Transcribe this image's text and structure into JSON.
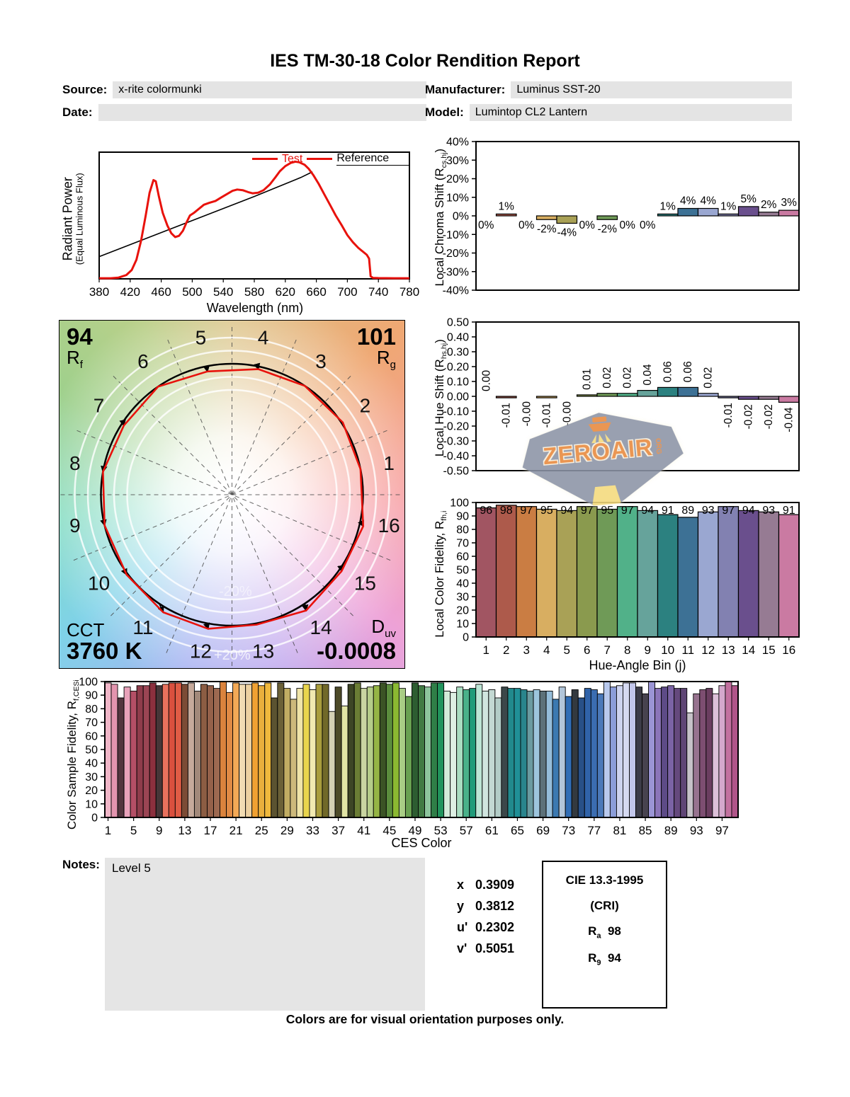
{
  "title": "IES TM-30-18 Color Rendition Report",
  "header": {
    "source_label": "Source:",
    "source_value": "x-rite colormunki",
    "manufacturer_label": "Manufacturer:",
    "manufacturer_value": "Luminus SST-20",
    "date_label": "Date:",
    "date_value": "",
    "model_label": "Model:",
    "model_value": "Lumintop CL2 Lantern"
  },
  "notes": {
    "label": "Notes:",
    "text": "Level 5"
  },
  "chromaticity": {
    "rows": [
      {
        "label": "x",
        "value": "0.3909"
      },
      {
        "label": "y",
        "value": "0.3812"
      },
      {
        "label": "u'",
        "value": "0.2302"
      },
      {
        "label": "v'",
        "value": "0.5051"
      }
    ]
  },
  "cie_box": {
    "title": "CIE 13.3-1995",
    "subtitle": "(CRI)",
    "ra_sym": "R",
    "ra_sub": "a",
    "ra_value": "98",
    "r9_sym": "R",
    "r9_sub": "9",
    "r9_value": "94"
  },
  "watermark": {
    "text": "ZEROAIR",
    "suffix": "ORG",
    "badge_color": "#8b93a6",
    "text_color": "#e8883c",
    "beam_color": "#f4da7c"
  },
  "footer": "Colors are for visual orientation purposes only.",
  "hue_bin_colors": [
    "#a15562",
    "#ad5a4b",
    "#ca7d43",
    "#d8ae61",
    "#a9a156",
    "#8a9a4e",
    "#6f9a57",
    "#51b189",
    "#66a39b",
    "#2c8180",
    "#3d7195",
    "#9aa7d1",
    "#8281b1",
    "#6a4f8d",
    "#967b93",
    "#ca7aa2"
  ],
  "chart_data": {
    "spd": {
      "type": "line",
      "xlabel": "Wavelength (nm)",
      "ylabel_line1": "Radiant Power",
      "ylabel_line2": "(Equal Luminous Flux)",
      "xlim": [
        380,
        780
      ],
      "xticks": [
        380,
        420,
        460,
        500,
        540,
        580,
        620,
        660,
        700,
        740,
        780
      ],
      "legend": {
        "test": "Test",
        "reference": "Reference"
      },
      "test_color": "#e8120c",
      "reference_color": "#000000",
      "test": {
        "x": [
          380,
          395,
          405,
          415,
          422,
          428,
          434,
          440,
          445,
          450,
          453,
          457,
          462,
          468,
          473,
          478,
          483,
          488,
          493,
          497,
          502,
          508,
          515,
          522,
          530,
          538,
          545,
          552,
          558,
          565,
          572,
          578,
          585,
          592,
          600,
          607,
          613,
          620,
          627,
          633,
          638,
          645,
          650,
          656,
          663,
          670,
          678,
          685,
          693,
          700,
          707,
          714,
          720,
          725,
          728,
          730,
          733,
          740,
          760,
          780
        ],
        "y": [
          0.005,
          0.005,
          0.01,
          0.03,
          0.07,
          0.15,
          0.3,
          0.5,
          0.68,
          0.78,
          0.77,
          0.65,
          0.52,
          0.42,
          0.36,
          0.33,
          0.34,
          0.38,
          0.45,
          0.5,
          0.52,
          0.55,
          0.585,
          0.6,
          0.615,
          0.645,
          0.67,
          0.695,
          0.705,
          0.7,
          0.685,
          0.675,
          0.68,
          0.7,
          0.745,
          0.8,
          0.85,
          0.89,
          0.915,
          0.925,
          0.92,
          0.9,
          0.87,
          0.82,
          0.75,
          0.67,
          0.58,
          0.5,
          0.42,
          0.345,
          0.29,
          0.245,
          0.215,
          0.19,
          0.16,
          0.02,
          0.008,
          0.006,
          0.005,
          0.005
        ]
      },
      "reference": {
        "x": [
          380,
          420,
          460,
          500,
          540,
          580,
          620,
          640,
          655
        ],
        "y": [
          0.175,
          0.27,
          0.365,
          0.46,
          0.555,
          0.65,
          0.75,
          0.8,
          0.845
        ]
      }
    },
    "chroma_shift": {
      "type": "bar",
      "ylabel_pre": "Local Chroma Shift (R",
      "ylabel_sub": "cs,hj",
      "ylabel_post": ")",
      "ylim": [
        -0.4,
        0.4
      ],
      "yticks": [
        "40%",
        "30%",
        "20%",
        "10%",
        "0%",
        "-10%",
        "-20%",
        "-30%",
        "-40%"
      ],
      "values": [
        0.0,
        0.01,
        0.0,
        -0.02,
        -0.04,
        0.0,
        -0.02,
        0.0,
        0.0,
        0.01,
        0.04,
        0.04,
        0.01,
        0.05,
        0.02,
        0.03
      ],
      "labels": [
        "0%",
        "1%",
        "0%",
        "-2%",
        "-4%",
        "0%",
        "-2%",
        "0%",
        "0%",
        "1%",
        "4%",
        "4%",
        "1%",
        "5%",
        "2%",
        "3%"
      ]
    },
    "hue_shift": {
      "type": "bar",
      "ylabel_pre": "Local Hue Shift (R",
      "ylabel_sub": "hs,hj",
      "ylabel_post": ")",
      "ylim": [
        -0.5,
        0.5
      ],
      "yticks": [
        "0.50",
        "0.40",
        "0.30",
        "0.20",
        "0.10",
        "0.00",
        "-0.10",
        "-0.20",
        "-0.30",
        "-0.40",
        "-0.50"
      ],
      "values": [
        0.0,
        -0.01,
        0.0,
        -0.01,
        0.0,
        0.01,
        0.02,
        0.02,
        0.04,
        0.06,
        0.06,
        0.02,
        -0.01,
        -0.02,
        -0.02,
        -0.04
      ],
      "labels": [
        "0.00",
        "-0.01",
        "-0.00",
        "-0.01",
        "-0.00",
        "0.01",
        "0.02",
        "0.02",
        "0.04",
        "0.06",
        "0.06",
        "0.02",
        "-0.01",
        "-0.02",
        "-0.02",
        "-0.04"
      ]
    },
    "local_fidelity": {
      "type": "bar",
      "ylabel_pre": "Local Color Fidelity, R",
      "ylabel_sub": "fh,i",
      "ylabel_post": "",
      "xlabel": "Hue-Angle Bin (j)",
      "ylim": [
        0,
        100
      ],
      "yticks": [
        "100",
        "90",
        "80",
        "70",
        "60",
        "50",
        "40",
        "30",
        "20",
        "10",
        "0"
      ],
      "categories": [
        "1",
        "2",
        "3",
        "4",
        "5",
        "6",
        "7",
        "8",
        "9",
        "10",
        "11",
        "12",
        "13",
        "14",
        "15",
        "16"
      ],
      "values": [
        96,
        98,
        97,
        95,
        94,
        97,
        95,
        97,
        94,
        91,
        89,
        93,
        97,
        94,
        93,
        91
      ]
    },
    "ces_fidelity": {
      "type": "bar",
      "ylabel_pre": "Color Sample Fidelity, R",
      "ylabel_sub": "f,CESi",
      "ylabel_post": "",
      "xlabel": "CES Color",
      "ylim": [
        0,
        100
      ],
      "yticks": [
        "100",
        "90",
        "80",
        "70",
        "60",
        "50",
        "40",
        "30",
        "20",
        "10",
        "0"
      ],
      "xtick_labels": [
        "1",
        "5",
        "9",
        "13",
        "17",
        "21",
        "25",
        "29",
        "33",
        "37",
        "41",
        "45",
        "49",
        "53",
        "57",
        "61",
        "65",
        "69",
        "73",
        "77",
        "81",
        "85",
        "89",
        "93",
        "97"
      ],
      "xtick_every": 4,
      "values": [
        99,
        98,
        88,
        96,
        93,
        97,
        97,
        99,
        97,
        98,
        99,
        99,
        98,
        99,
        93,
        98,
        97,
        95,
        100,
        92,
        99,
        98,
        98,
        99,
        97,
        99,
        88,
        99,
        95,
        87,
        95,
        98,
        94,
        98,
        98,
        78,
        96,
        82,
        98,
        99,
        95,
        96,
        97,
        99,
        98,
        99,
        95,
        89,
        99,
        97,
        96,
        99,
        99,
        93,
        92,
        96,
        94,
        95,
        98,
        93,
        94,
        88,
        96,
        95,
        95,
        94,
        93,
        94,
        93,
        93,
        87,
        96,
        89,
        94,
        88,
        95,
        94,
        91,
        100,
        96,
        97,
        99,
        99,
        96,
        91,
        100,
        95,
        96,
        97,
        95,
        95,
        77,
        91,
        94,
        95,
        91,
        97,
        100,
        97
      ],
      "colors": [
        "#f0b6c8",
        "#e394ae",
        "#53353e",
        "#e8a2ba",
        "#b44f66",
        "#8f3c4b",
        "#9b4554",
        "#8c303e",
        "#463638",
        "#e9715d",
        "#d9503e",
        "#e05c45",
        "#7c4b35",
        "#c6aa9b",
        "#a2897a",
        "#8c5d43",
        "#95614a",
        "#9d6951",
        "#da833d",
        "#e18b45",
        "#f3a956",
        "#f2dcb3",
        "#edd1a1",
        "#f0a132",
        "#e9af3d",
        "#f0b93d",
        "#5b5331",
        "#6b6137",
        "#c1ad63",
        "#cdb97b",
        "#f0e5a9",
        "#e9d54d",
        "#f1e9b1",
        "#a99d3d",
        "#716929",
        "#d5d1b5",
        "#4d4b29",
        "#e1e5a5",
        "#3d4525",
        "#6b7d35",
        "#c9d5a1",
        "#b5cd89",
        "#95b545",
        "#3b5325",
        "#5b8d3d",
        "#8bb931",
        "#a9cd85",
        "#69a151",
        "#2d5d31",
        "#407a43",
        "#8dc59d",
        "#2f7e47",
        "#21945d",
        "#d3ebd9",
        "#ddefe3",
        "#a9ddc1",
        "#49b189",
        "#209b79",
        "#bde5d5",
        "#d0e5df",
        "#c3d9d3",
        "#b3cdc7",
        "#3b4749",
        "#218a8d",
        "#209097",
        "#29858d",
        "#6b9ba1",
        "#9dc5dd",
        "#5d7179",
        "#95bdd9",
        "#3b79b1",
        "#b1c5d9",
        "#306db5",
        "#33393f",
        "#285087",
        "#3063a9",
        "#3b6db1",
        "#4b79b9",
        "#b9c9ed",
        "#8b9dd9",
        "#cdd3ef",
        "#d5d9f1",
        "#c3c7eb",
        "#3d3d49",
        "#47434f",
        "#9b95d5",
        "#8b75b9",
        "#5d4b87",
        "#7b63a5",
        "#65497d",
        "#5f4575",
        "#c6c2c8",
        "#97738f",
        "#7d4e71",
        "#6b3e60",
        "#dcc0d8",
        "#d4a8cc",
        "#c2719f",
        "#b05589"
      ]
    },
    "cvg": {
      "type": "color-vector-graphic",
      "rf_value": "94",
      "rf_sym": "R",
      "rf_sub": "f",
      "rg_value": "101",
      "rg_sym": "R",
      "rg_sub": "g",
      "cct_label": "CCT",
      "cct_value": "3760 K",
      "duv_sym": "D",
      "duv_sub": "uv",
      "duv_value": "-0.0008",
      "outer_ring_label": "+20%",
      "inner_ring_label": "-20%",
      "bins": [
        "1",
        "2",
        "3",
        "4",
        "5",
        "6",
        "7",
        "8",
        "9",
        "10",
        "11",
        "12",
        "13",
        "14",
        "15",
        "16"
      ],
      "chroma_shift": [
        0.0,
        0.01,
        0.0,
        -0.02,
        -0.04,
        0.0,
        -0.02,
        0.0,
        0.0,
        0.01,
        0.04,
        0.04,
        0.01,
        0.05,
        0.02,
        0.03
      ],
      "hue_shift": [
        0.0,
        -0.01,
        0.0,
        -0.01,
        0.0,
        0.01,
        0.02,
        0.02,
        0.04,
        0.06,
        0.06,
        0.02,
        -0.01,
        -0.02,
        -0.02,
        -0.04
      ],
      "test_color": "#e8120c",
      "reference_color": "#000000"
    }
  }
}
